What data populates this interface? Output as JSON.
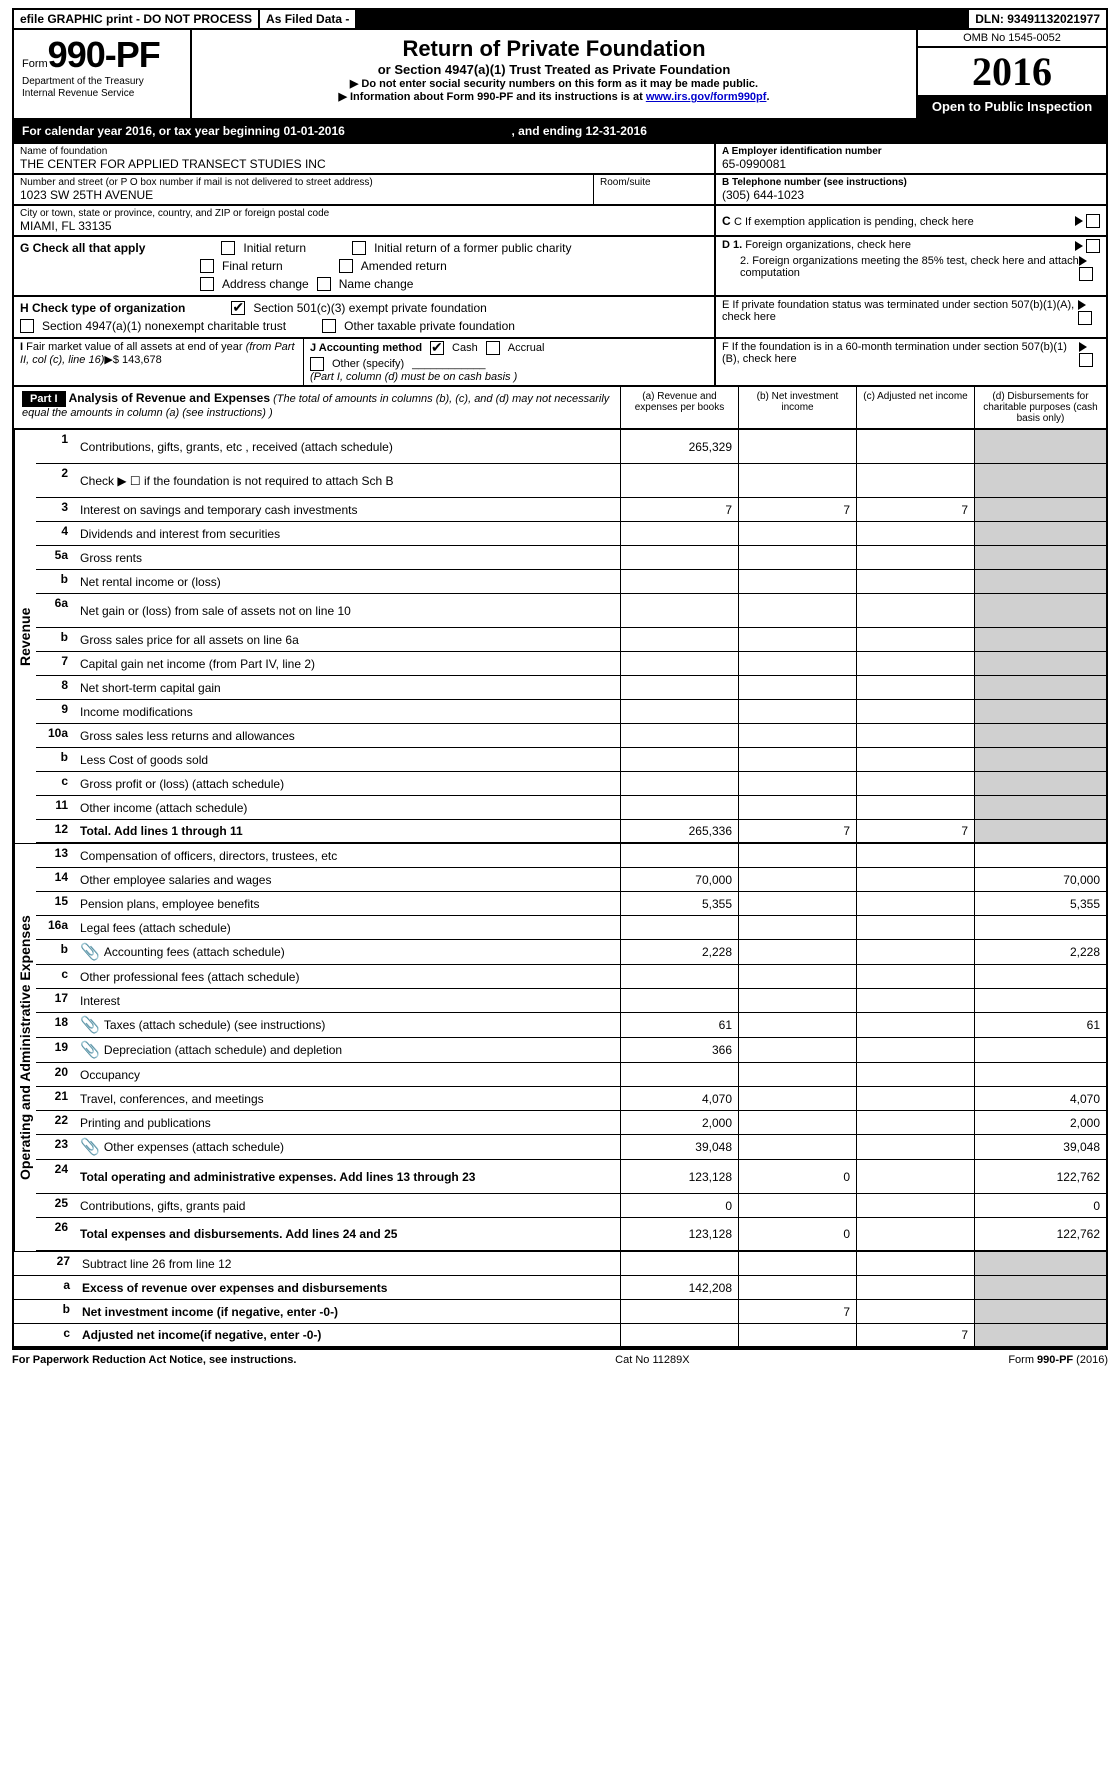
{
  "topbar": {
    "efile": "efile GRAPHIC print - DO NOT PROCESS",
    "asfiled": "As Filed Data -",
    "dln": "DLN: 93491132021977"
  },
  "header": {
    "form_label": "Form",
    "form_number": "990-PF",
    "dept1": "Department of the Treasury",
    "dept2": "Internal Revenue Service",
    "title": "Return of Private Foundation",
    "subtitle": "or Section 4947(a)(1) Trust Treated as Private Foundation",
    "instr1": "▶ Do not enter social security numbers on this form as it may be made public.",
    "instr2a": "▶ Information about Form 990-PF and its instructions is at ",
    "instr2b": "www.irs.gov/form990pf",
    "omb": "OMB No 1545-0052",
    "year": "2016",
    "open": "Open to Public Inspection"
  },
  "calyear": {
    "text1": "For calendar year 2016, or tax year beginning 01-01-2016",
    "text2": ", and ending 12-31-2016"
  },
  "info": {
    "name_lbl": "Name of foundation",
    "name": "THE CENTER FOR APPLIED TRANSECT STUDIES INC",
    "ein_lbl": "A Employer identification number",
    "ein": "65-0990081",
    "addr_lbl": "Number and street (or P O  box number if mail is not delivered to street address)",
    "room_lbl": "Room/suite",
    "addr": "1023 SW 25TH AVENUE",
    "phone_lbl": "B Telephone number (see instructions)",
    "phone": "(305) 644-1023",
    "city_lbl": "City or town, state or province, country, and ZIP or foreign postal code",
    "city": "MIAMI, FL  33135",
    "c_lbl": "C If exemption application is pending, check here"
  },
  "checks": {
    "g_lbl": "G Check all that apply",
    "g1": "Initial return",
    "g2": "Initial return of a former public charity",
    "g3": "Final return",
    "g4": "Amended return",
    "g5": "Address change",
    "g6": "Name change",
    "h_lbl": "H Check type of organization",
    "h1": "Section 501(c)(3) exempt private foundation",
    "h2": "Section 4947(a)(1) nonexempt charitable trust",
    "h3": "Other taxable private foundation",
    "d1": "D 1. Foreign organizations, check here",
    "d2": "2. Foreign organizations meeting the 85% test, check here and attach computation",
    "e_lbl": "E  If private foundation status was terminated under section 507(b)(1)(A), check here",
    "i_lbl": "I Fair market value of all assets at end of year (from Part II, col  (c), line 16)▶$  143,678",
    "j_lbl": "J Accounting method",
    "j1": "Cash",
    "j2": "Accrual",
    "j3": "Other (specify)",
    "j_note": "(Part I, column (d) must be on cash basis )",
    "f_lbl": "F  If the foundation is in a 60-month termination under section 507(b)(1)(B), check here"
  },
  "part1": {
    "label": "Part I",
    "title": "Analysis of Revenue and Expenses",
    "note": "(The total of amounts in columns (b), (c), and (d) may not necessarily equal the amounts in column (a) (see instructions) )",
    "col_a": "(a) Revenue and expenses per books",
    "col_b": "(b) Net investment income",
    "col_c": "(c) Adjusted net income",
    "col_d": "(d) Disbursements for charitable purposes (cash basis only)"
  },
  "rev_label": "Revenue",
  "exp_label": "Operating and Administrative Expenses",
  "rows": {
    "r1": {
      "n": "1",
      "d": "Contributions, gifts, grants, etc , received (attach schedule)",
      "a": "265,329"
    },
    "r2": {
      "n": "2",
      "d": "Check ▶ ☐ if the foundation is not required to attach Sch B"
    },
    "r3": {
      "n": "3",
      "d": "Interest on savings and temporary cash investments",
      "a": "7",
      "b": "7",
      "c": "7"
    },
    "r4": {
      "n": "4",
      "d": "Dividends and interest from securities"
    },
    "r5a": {
      "n": "5a",
      "d": "Gross rents"
    },
    "r5b": {
      "n": "b",
      "d": "Net rental income or (loss)"
    },
    "r6a": {
      "n": "6a",
      "d": "Net gain or (loss) from sale of assets not on line 10"
    },
    "r6b": {
      "n": "b",
      "d": "Gross sales price for all assets on line 6a"
    },
    "r7": {
      "n": "7",
      "d": "Capital gain net income (from Part IV, line 2)"
    },
    "r8": {
      "n": "8",
      "d": "Net short-term capital gain"
    },
    "r9": {
      "n": "9",
      "d": "Income modifications"
    },
    "r10a": {
      "n": "10a",
      "d": "Gross sales less returns and allowances"
    },
    "r10b": {
      "n": "b",
      "d": "Less  Cost of goods sold"
    },
    "r10c": {
      "n": "c",
      "d": "Gross profit or (loss) (attach schedule)"
    },
    "r11": {
      "n": "11",
      "d": "Other income (attach schedule)"
    },
    "r12": {
      "n": "12",
      "d": "Total. Add lines 1 through 11",
      "a": "265,336",
      "b": "7",
      "c": "7",
      "bold": true
    },
    "r13": {
      "n": "13",
      "d": "Compensation of officers, directors, trustees, etc"
    },
    "r14": {
      "n": "14",
      "d": "Other employee salaries and wages",
      "a": "70,000",
      "dd": "70,000"
    },
    "r15": {
      "n": "15",
      "d": "Pension plans, employee benefits",
      "a": "5,355",
      "dd": "5,355"
    },
    "r16a": {
      "n": "16a",
      "d": "Legal fees (attach schedule)"
    },
    "r16b": {
      "n": "b",
      "d": "Accounting fees (attach schedule)",
      "a": "2,228",
      "dd": "2,228",
      "icon": true
    },
    "r16c": {
      "n": "c",
      "d": "Other professional fees (attach schedule)"
    },
    "r17": {
      "n": "17",
      "d": "Interest"
    },
    "r18": {
      "n": "18",
      "d": "Taxes (attach schedule) (see instructions)",
      "a": "61",
      "dd": "61",
      "icon": true
    },
    "r19": {
      "n": "19",
      "d": "Depreciation (attach schedule) and depletion",
      "a": "366",
      "icon": true
    },
    "r20": {
      "n": "20",
      "d": "Occupancy"
    },
    "r21": {
      "n": "21",
      "d": "Travel, conferences, and meetings",
      "a": "4,070",
      "dd": "4,070"
    },
    "r22": {
      "n": "22",
      "d": "Printing and publications",
      "a": "2,000",
      "dd": "2,000"
    },
    "r23": {
      "n": "23",
      "d": "Other expenses (attach schedule)",
      "a": "39,048",
      "dd": "39,048",
      "icon": true
    },
    "r24": {
      "n": "24",
      "d": "Total operating and administrative expenses. Add lines 13 through 23",
      "a": "123,128",
      "b": "0",
      "dd": "122,762",
      "bold": true
    },
    "r25": {
      "n": "25",
      "d": "Contributions, gifts, grants paid",
      "a": "0",
      "dd": "0"
    },
    "r26": {
      "n": "26",
      "d": "Total expenses and disbursements. Add lines 24 and 25",
      "a": "123,128",
      "b": "0",
      "dd": "122,762",
      "bold": true
    },
    "r27": {
      "n": "27",
      "d": "Subtract line 26 from line 12"
    },
    "r27a": {
      "n": "a",
      "d": "Excess of revenue over expenses and disbursements",
      "a": "142,208",
      "bold": true
    },
    "r27b": {
      "n": "b",
      "d": "Net investment income (if negative, enter -0-)",
      "b": "7",
      "bold": true
    },
    "r27c": {
      "n": "c",
      "d": "Adjusted net income(if negative, enter -0-)",
      "c": "7",
      "bold": true
    }
  },
  "footer": {
    "left": "For Paperwork Reduction Act Notice, see instructions.",
    "mid": "Cat  No  11289X",
    "right": "Form 990-PF (2016)"
  }
}
